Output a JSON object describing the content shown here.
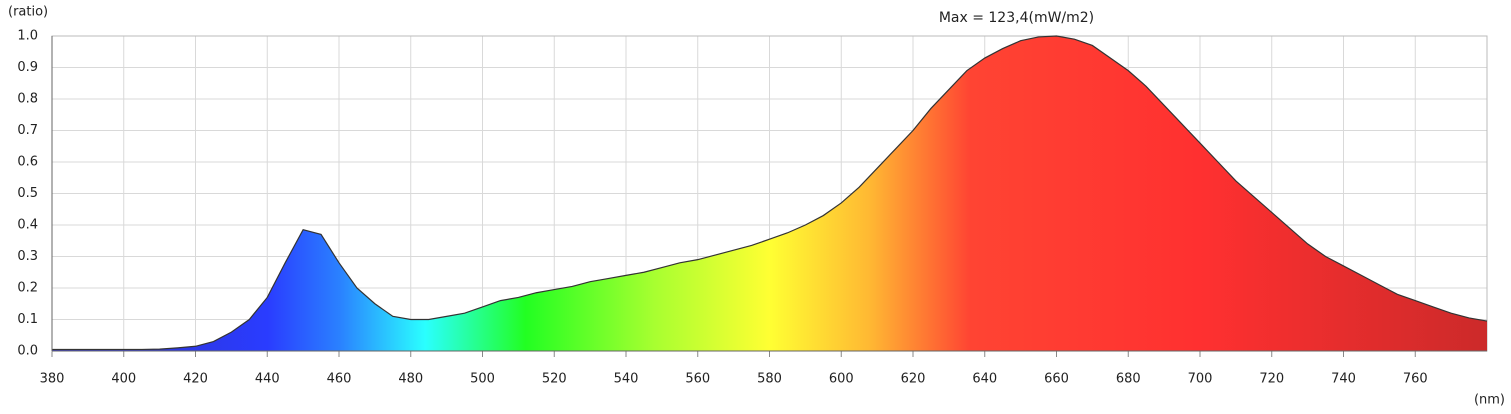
{
  "chart_data": {
    "type": "area",
    "y_label": "(ratio)",
    "x_label": "(nm)",
    "annotation": "Max = 123,4(mW/m2)",
    "x": [
      380,
      385,
      390,
      395,
      400,
      405,
      410,
      415,
      420,
      425,
      430,
      435,
      440,
      445,
      450,
      455,
      460,
      465,
      470,
      475,
      480,
      485,
      490,
      495,
      500,
      505,
      510,
      515,
      520,
      525,
      530,
      535,
      540,
      545,
      550,
      555,
      560,
      565,
      570,
      575,
      580,
      585,
      590,
      595,
      600,
      605,
      610,
      615,
      620,
      625,
      630,
      635,
      640,
      645,
      650,
      655,
      660,
      665,
      670,
      675,
      680,
      685,
      690,
      695,
      700,
      705,
      710,
      715,
      720,
      725,
      730,
      735,
      740,
      745,
      750,
      755,
      760,
      765,
      770,
      775,
      780
    ],
    "values": [
      0.005,
      0.005,
      0.005,
      0.005,
      0.005,
      0.005,
      0.006,
      0.01,
      0.015,
      0.03,
      0.06,
      0.1,
      0.17,
      0.28,
      0.385,
      0.37,
      0.28,
      0.2,
      0.15,
      0.11,
      0.1,
      0.1,
      0.11,
      0.12,
      0.14,
      0.16,
      0.17,
      0.185,
      0.195,
      0.205,
      0.22,
      0.23,
      0.24,
      0.25,
      0.265,
      0.28,
      0.29,
      0.305,
      0.32,
      0.335,
      0.355,
      0.375,
      0.4,
      0.43,
      0.47,
      0.52,
      0.58,
      0.64,
      0.7,
      0.77,
      0.83,
      0.89,
      0.93,
      0.96,
      0.985,
      0.997,
      1.0,
      0.99,
      0.97,
      0.93,
      0.89,
      0.84,
      0.78,
      0.72,
      0.66,
      0.6,
      0.54,
      0.49,
      0.44,
      0.39,
      0.34,
      0.3,
      0.27,
      0.24,
      0.21,
      0.18,
      0.16,
      0.14,
      0.12,
      0.105,
      0.095
    ],
    "xlim": [
      380,
      780
    ],
    "ylim": [
      0,
      1
    ],
    "xticks": [
      380,
      400,
      420,
      440,
      460,
      480,
      500,
      520,
      540,
      560,
      580,
      600,
      620,
      640,
      660,
      680,
      700,
      720,
      740,
      760
    ],
    "yticks": [
      {
        "value": 0,
        "label": "0.0"
      },
      0.1,
      0.2,
      0.3,
      0.4,
      0.5,
      0.6,
      0.7,
      0.8,
      0.9,
      {
        "value": 1,
        "label": "1.0"
      }
    ],
    "grid": true,
    "line_color": "#333333"
  }
}
